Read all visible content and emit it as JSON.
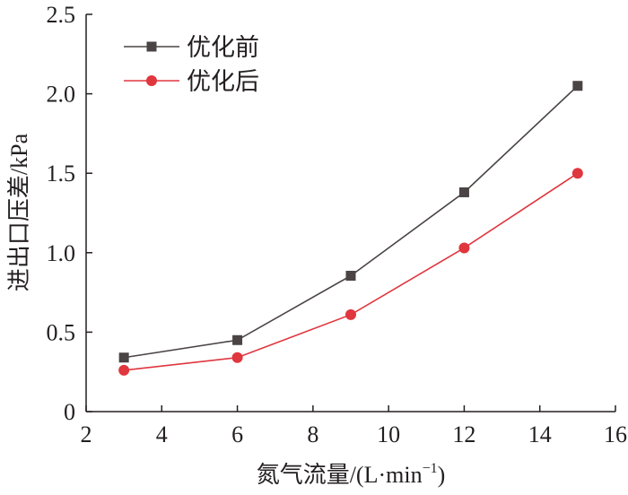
{
  "chart_data": {
    "type": "line",
    "title": "",
    "xlabel": "氮气流量/(L·min",
    "xlabel_sup": "−1",
    "xlabel_suffix": ")",
    "ylabel": "进出口压差/kPa",
    "xlim": [
      2,
      16
    ],
    "ylim": [
      0,
      2.5
    ],
    "x_ticks": [
      2,
      4,
      6,
      8,
      10,
      12,
      14,
      16
    ],
    "y_ticks": [
      0,
      0.5,
      1.0,
      1.5,
      2.0,
      2.5
    ],
    "x_tick_labels": [
      "2",
      "4",
      "6",
      "8",
      "10",
      "12",
      "14",
      "16"
    ],
    "y_tick_labels": [
      "0",
      "0.5",
      "1.0",
      "1.5",
      "2.0",
      "2.5"
    ],
    "grid": false,
    "legend_position": "top-left",
    "x": [
      3,
      6,
      9,
      12,
      15
    ],
    "series": [
      {
        "name": "优化前",
        "values": [
          0.34,
          0.45,
          0.855,
          1.38,
          2.05
        ],
        "color": "#4a4444",
        "marker": "square"
      },
      {
        "name": "优化后",
        "values": [
          0.26,
          0.34,
          0.61,
          1.03,
          1.5
        ],
        "color": "#e0363e",
        "marker": "circle"
      }
    ]
  }
}
